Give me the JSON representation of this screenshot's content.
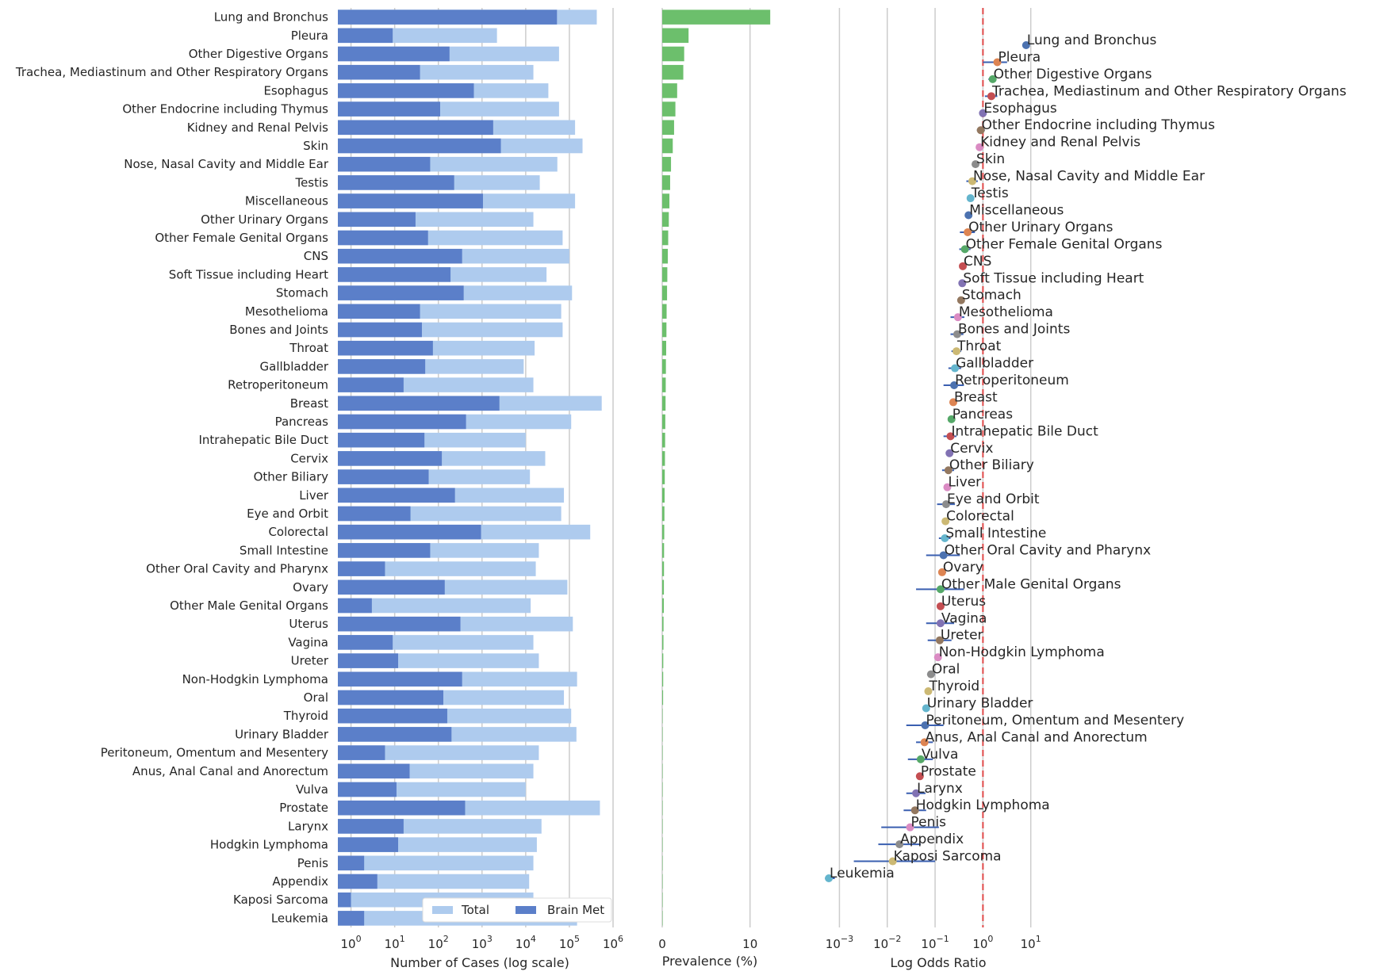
{
  "chart_data": [
    {
      "type": "bar",
      "orientation": "horizontal",
      "xscale": "log",
      "xlabel": "Number of Cases (log scale)",
      "xlim": [
        0.5,
        1000000
      ],
      "x_ticks": [
        1,
        10,
        100,
        1000,
        10000,
        100000,
        1000000
      ],
      "grid": "vertical",
      "legend": {
        "position": "bottom-right",
        "entries": [
          "Total",
          "Brain Met"
        ]
      },
      "colors": {
        "Total": "#aecbee",
        "Brain Met": "#5b7fc9"
      },
      "categories": [
        "Lung and Bronchus",
        "Pleura",
        "Other Digestive Organs",
        "Trachea, Mediastinum and Other Respiratory Organs",
        "Esophagus",
        "Other Endocrine including Thymus",
        "Kidney and Renal Pelvis",
        "Skin",
        "Nose, Nasal Cavity and Middle Ear",
        "Testis",
        "Miscellaneous",
        "Other Urinary Organs",
        "Other Female Genital Organs",
        "CNS",
        "Soft Tissue including Heart",
        "Stomach",
        "Mesothelioma",
        "Bones and Joints",
        "Throat",
        "Gallbladder",
        "Retroperitoneum",
        "Breast",
        "Pancreas",
        "Intrahepatic Bile Duct",
        "Cervix",
        "Other Biliary",
        "Liver",
        "Eye and Orbit",
        "Colorectal",
        "Small Intestine",
        "Other Oral Cavity and Pharynx",
        "Ovary",
        "Other Male Genital Organs",
        "Uterus",
        "Vagina",
        "Ureter",
        "Non-Hodgkin Lymphoma",
        "Oral",
        "Thyroid",
        "Urinary Bladder",
        "Peritoneum, Omentum and Mesentery",
        "Anus, Anal Canal and Anorectum",
        "Vulva",
        "Prostate",
        "Larynx",
        "Hodgkin Lymphoma",
        "Penis",
        "Appendix",
        "Kaposi Sarcoma",
        "Leukemia"
      ],
      "series": [
        {
          "name": "Total",
          "values": [
            424000,
            2200,
            58000,
            15000,
            33000,
            58000,
            135000,
            200000,
            53000,
            21000,
            135000,
            15000,
            70000,
            100000,
            30000,
            115000,
            65000,
            70000,
            16000,
            9000,
            15000,
            550000,
            110000,
            10000,
            28000,
            12500,
            75000,
            65000,
            300000,
            20000,
            17000,
            90000,
            13000,
            120000,
            15000,
            20000,
            150000,
            75000,
            110000,
            145000,
            20000,
            15000,
            10000,
            500000,
            23000,
            18000,
            15000,
            12000,
            15000,
            150000
          ]
        },
        {
          "name": "Brain Met",
          "values": [
            52000,
            9,
            180,
            38,
            650,
            110,
            1800,
            2700,
            65,
            230,
            1050,
            30,
            58,
            350,
            190,
            380,
            38,
            42,
            75,
            50,
            16,
            2500,
            430,
            48,
            120,
            60,
            240,
            23,
            950,
            65,
            6,
            140,
            3,
            320,
            9,
            12,
            350,
            130,
            160,
            200,
            6,
            22,
            11,
            410,
            16,
            12,
            2,
            4,
            1,
            2
          ]
        }
      ]
    },
    {
      "type": "bar",
      "orientation": "horizontal",
      "xlabel": "Prevalence (%)",
      "xlim": [
        0,
        14
      ],
      "x_ticks": [
        0,
        10
      ],
      "color": "#6cbf6c",
      "categories_ref": "same as panel 1",
      "values": [
        12.3,
        3.0,
        2.5,
        2.4,
        1.7,
        1.5,
        1.35,
        1.2,
        1.0,
        0.9,
        0.82,
        0.75,
        0.68,
        0.64,
        0.58,
        0.55,
        0.5,
        0.48,
        0.45,
        0.42,
        0.4,
        0.38,
        0.35,
        0.33,
        0.31,
        0.29,
        0.27,
        0.25,
        0.23,
        0.21,
        0.2,
        0.19,
        0.18,
        0.15,
        0.14,
        0.12,
        0.11,
        0.1,
        0.04,
        0.03,
        0.03,
        0.03,
        0.02,
        0.02,
        0.02,
        0.02,
        0.02,
        0.02,
        0.01,
        0.01
      ]
    },
    {
      "type": "scatter",
      "subtype": "forest",
      "xscale": "log",
      "xlabel": "Log Odds Ratio",
      "xlim": [
        0.00013,
        100
      ],
      "x_ticks": [
        0.001,
        0.01,
        0.1,
        1,
        10
      ],
      "reference_line": {
        "x": 1,
        "style": "dashed",
        "color": "#e04a4a"
      },
      "point_colors": [
        "#4c72b0",
        "#dd8452",
        "#55a868",
        "#c44e52",
        "#8172b3",
        "#937860",
        "#da8bc3",
        "#8c8c8c",
        "#ccb974",
        "#64b5cd"
      ],
      "points": [
        {
          "label": "Lung and Bronchus",
          "or": 8.0,
          "lo": 7.5,
          "hi": 8.6
        },
        {
          "label": "Pleura",
          "or": 2.0,
          "lo": 1.0,
          "hi": 3.2
        },
        {
          "label": "Other Digestive Organs",
          "or": 1.6,
          "lo": 1.3,
          "hi": 1.9
        },
        {
          "label": "Trachea, Mediastinum and Other Respiratory Organs",
          "or": 1.5,
          "lo": 1.1,
          "hi": 2.0
        },
        {
          "label": "Esophagus",
          "or": 1.0,
          "lo": 0.92,
          "hi": 1.1
        },
        {
          "label": "Other Endocrine including Thymus",
          "or": 0.9,
          "lo": 0.75,
          "hi": 1.1
        },
        {
          "label": "Kidney and Renal Pelvis",
          "or": 0.85,
          "lo": 0.8,
          "hi": 0.9
        },
        {
          "label": "Skin",
          "or": 0.7,
          "lo": 0.67,
          "hi": 0.74
        },
        {
          "label": "Nose, Nasal Cavity and Middle Ear",
          "or": 0.6,
          "lo": 0.45,
          "hi": 0.78
        },
        {
          "label": "Testis",
          "or": 0.55,
          "lo": 0.48,
          "hi": 0.63
        },
        {
          "label": "Miscellaneous",
          "or": 0.5,
          "lo": 0.47,
          "hi": 0.53
        },
        {
          "label": "Other Urinary Organs",
          "or": 0.48,
          "lo": 0.33,
          "hi": 0.68
        },
        {
          "label": "Other Female Genital Organs",
          "or": 0.42,
          "lo": 0.32,
          "hi": 0.55
        },
        {
          "label": "CNS",
          "or": 0.38,
          "lo": 0.34,
          "hi": 0.43
        },
        {
          "label": "Soft Tissue including Heart",
          "or": 0.37,
          "lo": 0.32,
          "hi": 0.43
        },
        {
          "label": "Stomach",
          "or": 0.35,
          "lo": 0.31,
          "hi": 0.39
        },
        {
          "label": "Mesothelioma",
          "or": 0.3,
          "lo": 0.21,
          "hi": 0.41
        },
        {
          "label": "Bones and Joints",
          "or": 0.29,
          "lo": 0.21,
          "hi": 0.39
        },
        {
          "label": "Throat",
          "or": 0.28,
          "lo": 0.22,
          "hi": 0.35
        },
        {
          "label": "Gallbladder",
          "or": 0.26,
          "lo": 0.19,
          "hi": 0.35
        },
        {
          "label": "Retroperitoneum",
          "or": 0.25,
          "lo": 0.15,
          "hi": 0.4
        },
        {
          "label": "Breast",
          "or": 0.24,
          "lo": 0.23,
          "hi": 0.25
        },
        {
          "label": "Pancreas",
          "or": 0.22,
          "lo": 0.2,
          "hi": 0.24
        },
        {
          "label": "Intrahepatic Bile Duct",
          "or": 0.21,
          "lo": 0.15,
          "hi": 0.28
        },
        {
          "label": "Cervix",
          "or": 0.2,
          "lo": 0.17,
          "hi": 0.24
        },
        {
          "label": "Other Biliary",
          "or": 0.19,
          "lo": 0.14,
          "hi": 0.25
        },
        {
          "label": "Liver",
          "or": 0.18,
          "lo": 0.16,
          "hi": 0.2
        },
        {
          "label": "Eye and Orbit",
          "or": 0.17,
          "lo": 0.11,
          "hi": 0.26
        },
        {
          "label": "Colorectal",
          "or": 0.165,
          "lo": 0.155,
          "hi": 0.175
        },
        {
          "label": "Small Intestine",
          "or": 0.16,
          "lo": 0.12,
          "hi": 0.21
        },
        {
          "label": "Other Oral Cavity and Pharynx",
          "or": 0.15,
          "lo": 0.065,
          "hi": 0.33
        },
        {
          "label": "Ovary",
          "or": 0.14,
          "lo": 0.12,
          "hi": 0.17
        },
        {
          "label": "Other Male Genital Organs",
          "or": 0.13,
          "lo": 0.04,
          "hi": 0.4
        },
        {
          "label": "Uterus",
          "or": 0.13,
          "lo": 0.12,
          "hi": 0.15
        },
        {
          "label": "Vagina",
          "or": 0.13,
          "lo": 0.065,
          "hi": 0.25
        },
        {
          "label": "Ureter",
          "or": 0.125,
          "lo": 0.07,
          "hi": 0.22
        },
        {
          "label": "Non-Hodgkin Lymphoma",
          "or": 0.115,
          "lo": 0.1,
          "hi": 0.13
        },
        {
          "label": "Oral",
          "or": 0.082,
          "lo": 0.068,
          "hi": 0.1
        },
        {
          "label": "Thyroid",
          "or": 0.072,
          "lo": 0.062,
          "hi": 0.085
        },
        {
          "label": "Urinary Bladder",
          "or": 0.065,
          "lo": 0.057,
          "hi": 0.075
        },
        {
          "label": "Peritoneum, Omentum and Mesentery",
          "or": 0.062,
          "lo": 0.025,
          "hi": 0.15
        },
        {
          "label": "Anus, Anal Canal and Anorectum",
          "or": 0.06,
          "lo": 0.04,
          "hi": 0.09
        },
        {
          "label": "Vulva",
          "or": 0.05,
          "lo": 0.027,
          "hi": 0.09
        },
        {
          "label": "Prostate",
          "or": 0.048,
          "lo": 0.044,
          "hi": 0.052
        },
        {
          "label": "Larynx",
          "or": 0.04,
          "lo": 0.025,
          "hi": 0.063
        },
        {
          "label": "Hodgkin Lymphoma",
          "or": 0.038,
          "lo": 0.022,
          "hi": 0.065
        },
        {
          "label": "Penis",
          "or": 0.03,
          "lo": 0.0075,
          "hi": 0.12
        },
        {
          "label": "Appendix",
          "or": 0.018,
          "lo": 0.0065,
          "hi": 0.05
        },
        {
          "label": "Kaposi Sarcoma",
          "or": 0.013,
          "lo": 0.002,
          "hi": 0.1
        },
        {
          "label": "Leukemia",
          "or": 0.0006,
          "lo": 0.0005,
          "hi": 0.0008
        }
      ]
    }
  ]
}
